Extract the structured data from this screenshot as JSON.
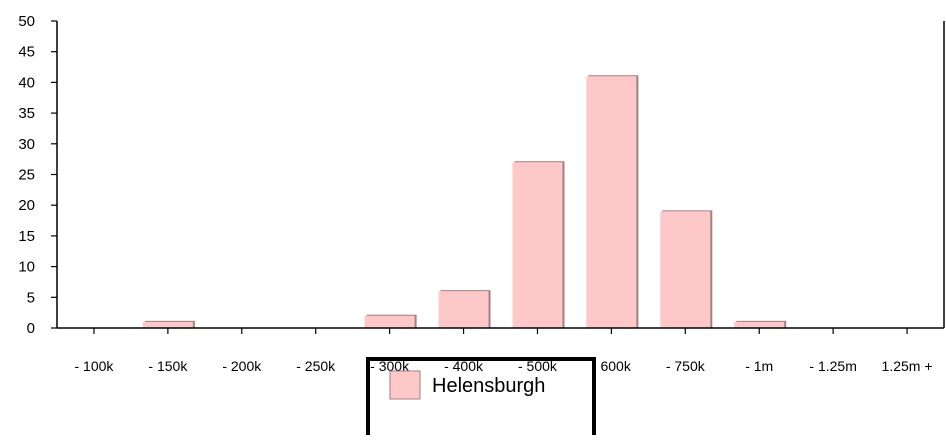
{
  "chart_data": {
    "type": "bar",
    "categories": [
      "- 100k",
      "- 150k",
      "- 200k",
      "- 250k",
      "- 300k",
      "- 400k",
      "- 500k",
      "- 600k",
      "- 750k",
      "- 1m",
      "- 1.25m",
      "1.25m +"
    ],
    "series": [
      {
        "name": "Helensburgh",
        "values": [
          0,
          1,
          0,
          0,
          2,
          6,
          27,
          41,
          19,
          1,
          0,
          0
        ],
        "color": "#ffc8c8"
      }
    ],
    "yticks": [
      "0",
      "5",
      "10",
      "15",
      "20",
      "25",
      "30",
      "35",
      "40",
      "45",
      "50"
    ],
    "ylim": [
      0,
      50
    ],
    "grid": false,
    "legend_position": "bottom-center"
  },
  "colors": {
    "bar_fill": "#ffc8c8",
    "bar_shadow": "#a08080",
    "axis": "#000000",
    "legend_border": "#000000"
  }
}
